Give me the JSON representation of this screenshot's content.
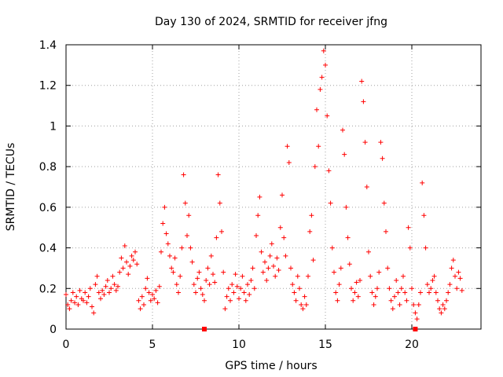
{
  "chart_data": {
    "type": "scatter",
    "title": "Day 130 of 2024, SRMTID for receiver jfng",
    "xlabel": "GPS time / hours",
    "ylabel": "SRMTID / TECUs",
    "xlim": [
      0,
      24
    ],
    "ylim": [
      0,
      1.4
    ],
    "xticks": [
      "0",
      "5",
      "10",
      "15",
      "20"
    ],
    "yticks": [
      "0",
      "0.2",
      "0.4",
      "0.6",
      "0.8",
      "1",
      "1.2",
      "1.4"
    ],
    "xtick_values": [
      0,
      5,
      10,
      15,
      20
    ],
    "ytick_values": [
      0,
      0.2,
      0.4,
      0.6,
      0.8,
      1.0,
      1.2,
      1.4
    ],
    "grid": true,
    "marker": "+",
    "color": "#ff0000",
    "series": [
      {
        "name": "SRMTID",
        "points": [
          [
            0.0,
            0.17
          ],
          [
            0.1,
            0.12
          ],
          [
            0.2,
            0.1
          ],
          [
            0.3,
            0.14
          ],
          [
            0.4,
            0.18
          ],
          [
            0.5,
            0.13
          ],
          [
            0.6,
            0.16
          ],
          [
            0.7,
            0.12
          ],
          [
            0.8,
            0.19
          ],
          [
            0.9,
            0.15
          ],
          [
            1.0,
            0.14
          ],
          [
            1.1,
            0.18
          ],
          [
            1.2,
            0.13
          ],
          [
            1.3,
            0.16
          ],
          [
            1.4,
            0.2
          ],
          [
            1.5,
            0.11
          ],
          [
            1.6,
            0.08
          ],
          [
            1.7,
            0.22
          ],
          [
            1.8,
            0.26
          ],
          [
            1.9,
            0.18
          ],
          [
            2.0,
            0.15
          ],
          [
            2.1,
            0.19
          ],
          [
            2.2,
            0.17
          ],
          [
            2.3,
            0.21
          ],
          [
            2.4,
            0.24
          ],
          [
            2.5,
            0.18
          ],
          [
            2.6,
            0.2
          ],
          [
            2.7,
            0.26
          ],
          [
            2.8,
            0.22
          ],
          [
            2.9,
            0.19
          ],
          [
            3.0,
            0.21
          ],
          [
            3.1,
            0.28
          ],
          [
            3.2,
            0.35
          ],
          [
            3.3,
            0.3
          ],
          [
            3.4,
            0.41
          ],
          [
            3.5,
            0.33
          ],
          [
            3.6,
            0.27
          ],
          [
            3.7,
            0.31
          ],
          [
            3.8,
            0.36
          ],
          [
            3.9,
            0.34
          ],
          [
            4.0,
            0.38
          ],
          [
            4.1,
            0.32
          ],
          [
            4.2,
            0.14
          ],
          [
            4.3,
            0.1
          ],
          [
            4.4,
            0.16
          ],
          [
            4.5,
            0.12
          ],
          [
            4.6,
            0.2
          ],
          [
            4.7,
            0.25
          ],
          [
            4.8,
            0.18
          ],
          [
            4.9,
            0.14
          ],
          [
            5.0,
            0.17
          ],
          [
            5.1,
            0.15
          ],
          [
            5.2,
            0.19
          ],
          [
            5.3,
            0.13
          ],
          [
            5.4,
            0.21
          ],
          [
            5.5,
            0.38
          ],
          [
            5.6,
            0.52
          ],
          [
            5.7,
            0.6
          ],
          [
            5.8,
            0.47
          ],
          [
            5.9,
            0.42
          ],
          [
            6.0,
            0.36
          ],
          [
            6.1,
            0.3
          ],
          [
            6.2,
            0.28
          ],
          [
            6.3,
            0.35
          ],
          [
            6.4,
            0.22
          ],
          [
            6.5,
            0.18
          ],
          [
            6.6,
            0.26
          ],
          [
            6.7,
            0.4
          ],
          [
            6.8,
            0.76
          ],
          [
            6.9,
            0.62
          ],
          [
            7.0,
            0.46
          ],
          [
            7.1,
            0.56
          ],
          [
            7.2,
            0.4
          ],
          [
            7.3,
            0.33
          ],
          [
            7.4,
            0.22
          ],
          [
            7.5,
            0.18
          ],
          [
            7.6,
            0.25
          ],
          [
            7.7,
            0.28
          ],
          [
            7.8,
            0.2
          ],
          [
            7.9,
            0.17
          ],
          [
            8.0,
            0.14
          ],
          [
            8.1,
            0.24
          ],
          [
            8.2,
            0.3
          ],
          [
            8.3,
            0.22
          ],
          [
            8.4,
            0.36
          ],
          [
            8.5,
            0.27
          ],
          [
            8.6,
            0.23
          ],
          [
            8.7,
            0.45
          ],
          [
            8.8,
            0.76
          ],
          [
            8.9,
            0.62
          ],
          [
            9.0,
            0.48
          ],
          [
            9.1,
            0.28
          ],
          [
            9.2,
            0.1
          ],
          [
            9.3,
            0.16
          ],
          [
            9.4,
            0.2
          ],
          [
            9.5,
            0.14
          ],
          [
            9.6,
            0.22
          ],
          [
            9.7,
            0.18
          ],
          [
            9.8,
            0.27
          ],
          [
            9.9,
            0.21
          ],
          [
            10.0,
            0.15
          ],
          [
            10.1,
            0.2
          ],
          [
            10.2,
            0.26
          ],
          [
            10.3,
            0.18
          ],
          [
            10.4,
            0.14
          ],
          [
            10.5,
            0.22
          ],
          [
            10.6,
            0.17
          ],
          [
            10.7,
            0.24
          ],
          [
            10.8,
            0.3
          ],
          [
            10.9,
            0.2
          ],
          [
            11.0,
            0.46
          ],
          [
            11.1,
            0.56
          ],
          [
            11.2,
            0.65
          ],
          [
            11.3,
            0.38
          ],
          [
            11.4,
            0.28
          ],
          [
            11.5,
            0.33
          ],
          [
            11.6,
            0.24
          ],
          [
            11.7,
            0.3
          ],
          [
            11.8,
            0.36
          ],
          [
            11.9,
            0.42
          ],
          [
            12.0,
            0.31
          ],
          [
            12.1,
            0.26
          ],
          [
            12.2,
            0.35
          ],
          [
            12.3,
            0.29
          ],
          [
            12.4,
            0.5
          ],
          [
            12.5,
            0.66
          ],
          [
            12.6,
            0.45
          ],
          [
            12.7,
            0.36
          ],
          [
            12.8,
            0.9
          ],
          [
            12.9,
            0.82
          ],
          [
            13.0,
            0.3
          ],
          [
            13.1,
            0.22
          ],
          [
            13.2,
            0.18
          ],
          [
            13.3,
            0.14
          ],
          [
            13.4,
            0.26
          ],
          [
            13.5,
            0.2
          ],
          [
            13.6,
            0.12
          ],
          [
            13.7,
            0.1
          ],
          [
            13.8,
            0.16
          ],
          [
            13.9,
            0.12
          ],
          [
            14.0,
            0.26
          ],
          [
            14.1,
            0.48
          ],
          [
            14.2,
            0.56
          ],
          [
            14.3,
            0.34
          ],
          [
            14.4,
            0.8
          ],
          [
            14.5,
            1.08
          ],
          [
            14.6,
            0.9
          ],
          [
            14.7,
            1.18
          ],
          [
            14.8,
            1.24
          ],
          [
            14.9,
            1.37
          ],
          [
            15.0,
            1.3
          ],
          [
            15.1,
            1.05
          ],
          [
            15.2,
            0.78
          ],
          [
            15.3,
            0.62
          ],
          [
            15.4,
            0.4
          ],
          [
            15.5,
            0.28
          ],
          [
            15.6,
            0.18
          ],
          [
            15.7,
            0.14
          ],
          [
            15.8,
            0.22
          ],
          [
            15.9,
            0.3
          ],
          [
            16.0,
            0.98
          ],
          [
            16.1,
            0.86
          ],
          [
            16.2,
            0.6
          ],
          [
            16.3,
            0.45
          ],
          [
            16.4,
            0.32
          ],
          [
            16.5,
            0.2
          ],
          [
            16.6,
            0.14
          ],
          [
            16.7,
            0.18
          ],
          [
            16.8,
            0.23
          ],
          [
            16.9,
            0.16
          ],
          [
            17.0,
            0.24
          ],
          [
            17.1,
            1.22
          ],
          [
            17.2,
            1.12
          ],
          [
            17.3,
            0.92
          ],
          [
            17.4,
            0.7
          ],
          [
            17.5,
            0.38
          ],
          [
            17.6,
            0.26
          ],
          [
            17.7,
            0.18
          ],
          [
            17.8,
            0.12
          ],
          [
            17.9,
            0.16
          ],
          [
            18.0,
            0.2
          ],
          [
            18.1,
            0.28
          ],
          [
            18.2,
            0.92
          ],
          [
            18.3,
            0.84
          ],
          [
            18.4,
            0.62
          ],
          [
            18.5,
            0.48
          ],
          [
            18.6,
            0.3
          ],
          [
            18.7,
            0.2
          ],
          [
            18.8,
            0.14
          ],
          [
            18.9,
            0.1
          ],
          [
            19.0,
            0.16
          ],
          [
            19.1,
            0.24
          ],
          [
            19.2,
            0.18
          ],
          [
            19.3,
            0.12
          ],
          [
            19.4,
            0.2
          ],
          [
            19.5,
            0.26
          ],
          [
            19.6,
            0.18
          ],
          [
            19.7,
            0.14
          ],
          [
            19.8,
            0.5
          ],
          [
            19.9,
            0.4
          ],
          [
            20.0,
            0.2
          ],
          [
            20.1,
            0.12
          ],
          [
            20.2,
            0.08
          ],
          [
            20.3,
            0.05
          ],
          [
            20.4,
            0.12
          ],
          [
            20.5,
            0.18
          ],
          [
            20.6,
            0.72
          ],
          [
            20.7,
            0.56
          ],
          [
            20.8,
            0.4
          ],
          [
            20.9,
            0.22
          ],
          [
            21.0,
            0.18
          ],
          [
            21.1,
            0.2
          ],
          [
            21.2,
            0.24
          ],
          [
            21.3,
            0.26
          ],
          [
            21.4,
            0.18
          ],
          [
            21.5,
            0.14
          ],
          [
            21.6,
            0.1
          ],
          [
            21.7,
            0.08
          ],
          [
            21.8,
            0.12
          ],
          [
            21.9,
            0.1
          ],
          [
            22.0,
            0.14
          ],
          [
            22.1,
            0.18
          ],
          [
            22.2,
            0.22
          ],
          [
            22.3,
            0.3
          ],
          [
            22.4,
            0.34
          ],
          [
            22.5,
            0.26
          ],
          [
            22.6,
            0.2
          ],
          [
            22.7,
            0.28
          ],
          [
            22.8,
            0.25
          ],
          [
            22.9,
            0.19
          ]
        ]
      }
    ],
    "gap_markers": [
      8.0,
      20.2
    ]
  }
}
